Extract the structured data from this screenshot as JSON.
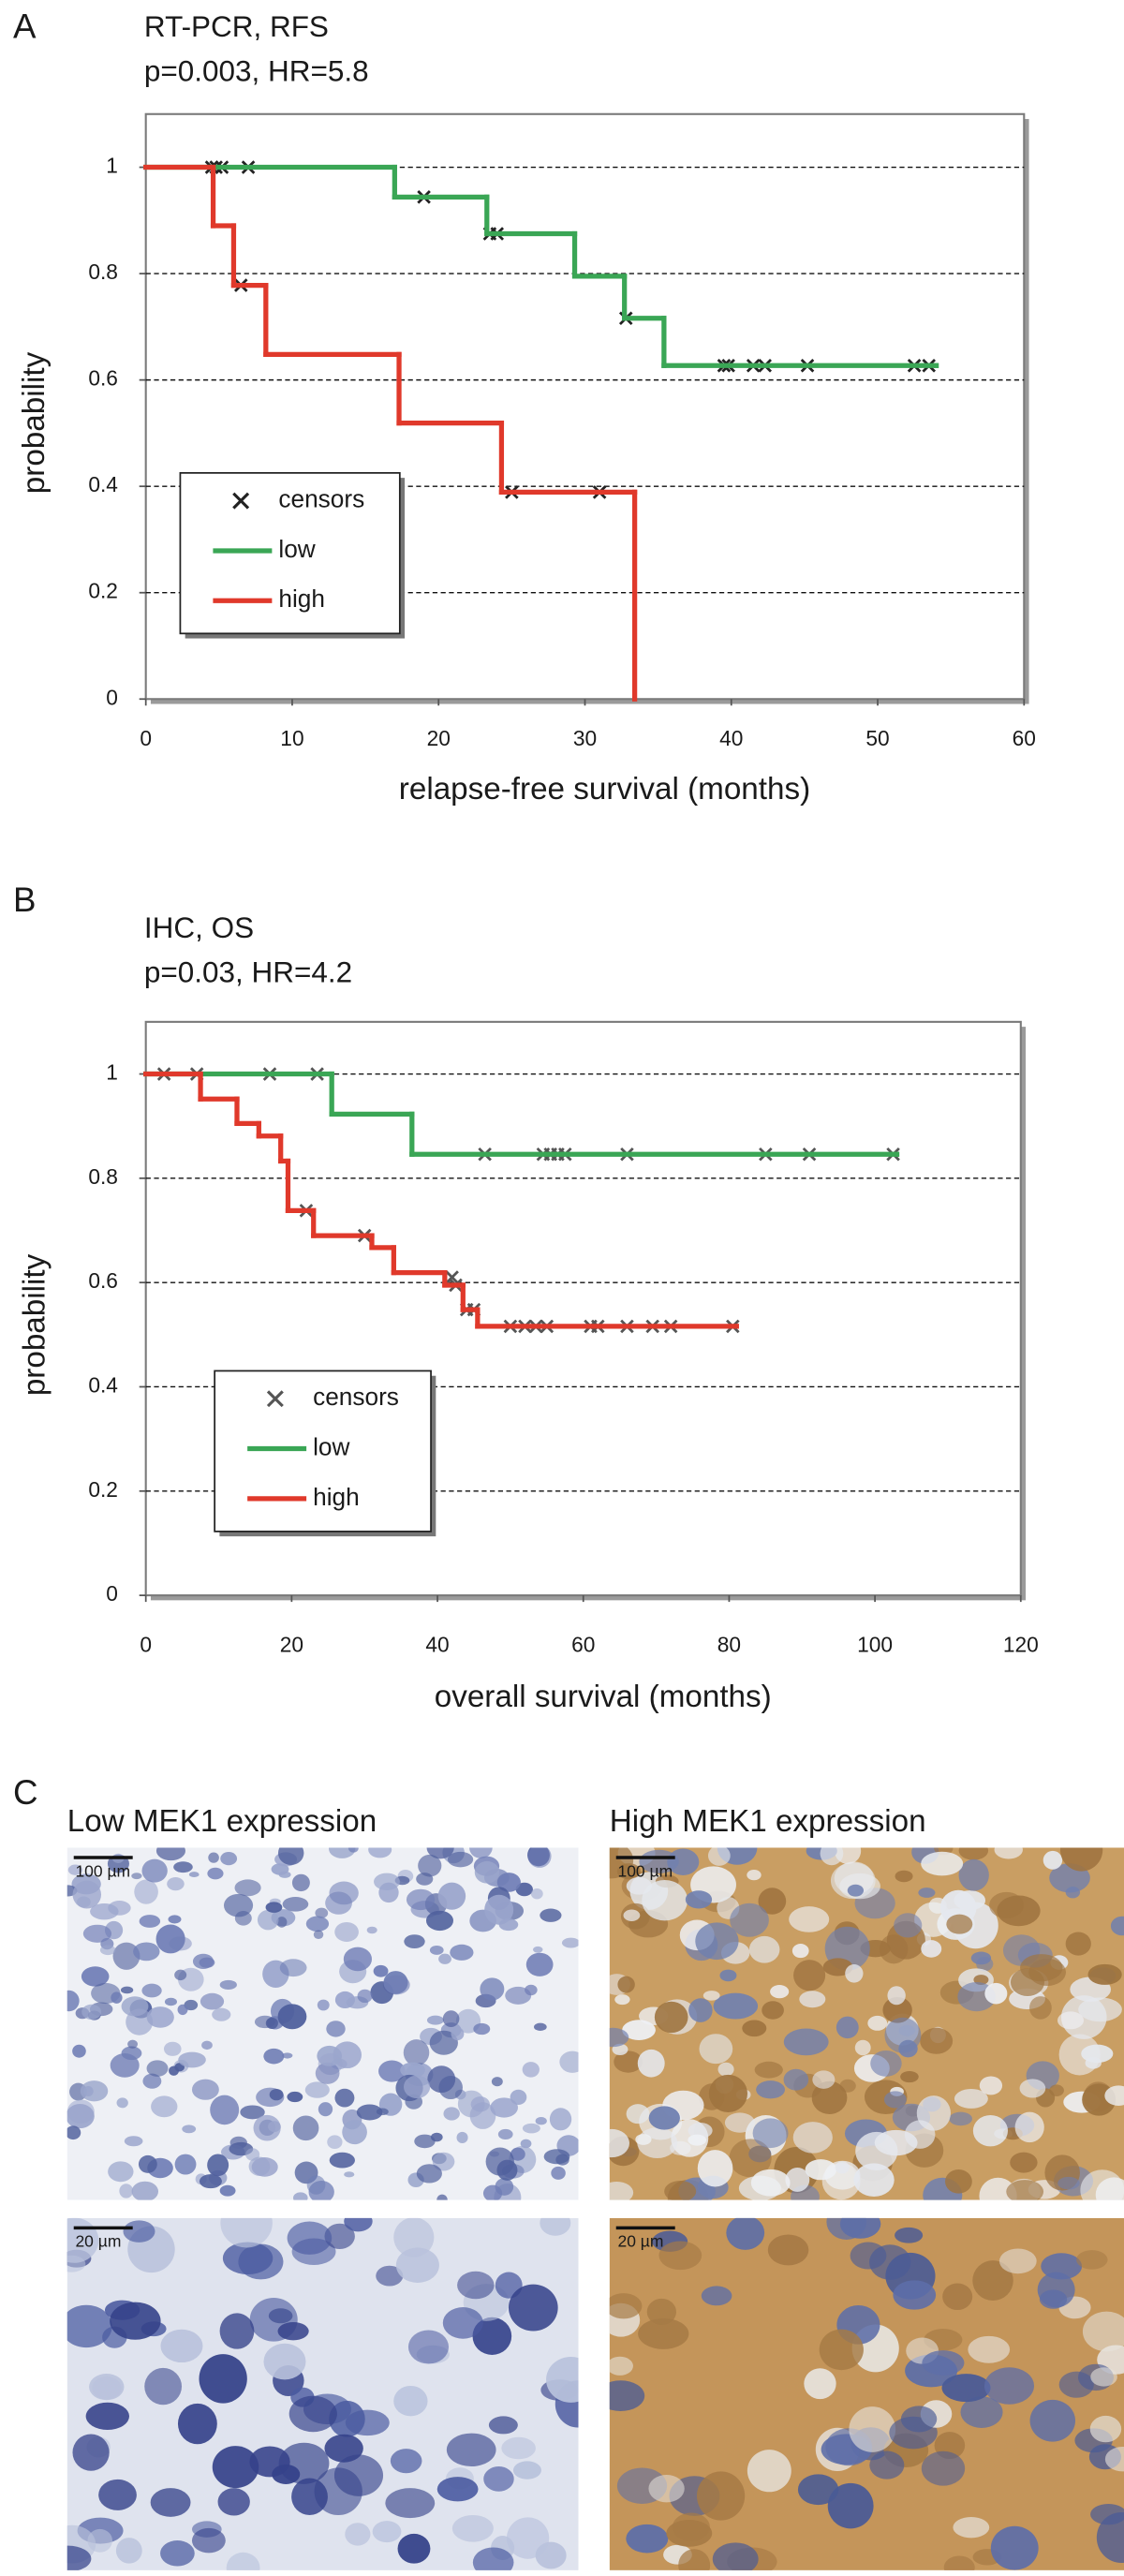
{
  "chart_data": [
    {
      "type": "line",
      "panel_label": "A",
      "title": "RT-PCR, RFS",
      "subtitle": "p=0.003, HR=5.8",
      "x_label": "relapse-free survival (months)",
      "y_label": "probability",
      "xlim": [
        0,
        60
      ],
      "xticks": [
        0,
        10,
        20,
        30,
        40,
        50,
        60
      ],
      "ylim": [
        0,
        1.1
      ],
      "yticks": [
        0,
        0.2,
        0.4,
        0.6,
        0.8,
        1
      ],
      "grid": true,
      "legend": "lower left",
      "series": [
        {
          "name": "censors",
          "color": "#222222",
          "marker": "x",
          "linestyle": "none",
          "x": [
            4.5,
            4.8,
            5.2,
            7,
            6.5,
            19,
            23.5,
            24,
            25,
            31,
            32.8,
            39.5,
            39.8,
            41.5,
            42.3,
            45.2,
            52.5,
            53.5
          ],
          "values": [
            1,
            1,
            1,
            1,
            0.778,
            0.944,
            0.875,
            0.875,
            0.389,
            0.389,
            0.716,
            0.627,
            0.627,
            0.627,
            0.627,
            0.627,
            0.627,
            0.627
          ]
        },
        {
          "name": "low",
          "color": "#3aa655",
          "drawstyle": "steps-post",
          "x": [
            0,
            17,
            23.3,
            29.3,
            32.7,
            35.4,
            54
          ],
          "values": [
            1,
            0.944,
            0.875,
            0.795,
            0.716,
            0.627,
            0.627
          ]
        },
        {
          "name": "high",
          "color": "#e0392b",
          "drawstyle": "steps-post",
          "x": [
            0,
            4.6,
            6,
            8.2,
            17.3,
            24.3,
            33.4
          ],
          "values": [
            1,
            0.89,
            0.778,
            0.648,
            0.519,
            0.389,
            0
          ]
        }
      ]
    },
    {
      "type": "line",
      "panel_label": "B",
      "title": "IHC, OS",
      "subtitle": "p=0.03, HR=4.2",
      "x_label": "overall survival (months)",
      "y_label": "probability",
      "xlim": [
        0,
        120
      ],
      "xticks": [
        0,
        20,
        40,
        60,
        80,
        100,
        120
      ],
      "ylim": [
        0,
        1.1
      ],
      "yticks": [
        0,
        0.2,
        0.4,
        0.6,
        0.8,
        1
      ],
      "grid": true,
      "legend": "lower left",
      "series": [
        {
          "name": "censors",
          "color": "#555555",
          "marker": "x",
          "linestyle": "none",
          "x": [
            17,
            23.5,
            46.5,
            54.5,
            55.5,
            56.5,
            57.5,
            66,
            85,
            91,
            102.5,
            2.5,
            7,
            22,
            30,
            42,
            42.5,
            44,
            45,
            50,
            52,
            53.5,
            55,
            61,
            62,
            66,
            69.5,
            72,
            80.5
          ],
          "values": [
            1,
            1,
            0.846,
            0.846,
            0.846,
            0.846,
            0.846,
            0.846,
            0.846,
            0.846,
            0.846,
            1,
            1,
            0.738,
            0.69,
            0.61,
            0.595,
            0.548,
            0.548,
            0.516,
            0.516,
            0.516,
            0.516,
            0.516,
            0.516,
            0.516,
            0.516,
            0.516,
            0.516
          ]
        },
        {
          "name": "low",
          "color": "#3aa655",
          "drawstyle": "steps-post",
          "x": [
            0,
            25.5,
            36.5,
            103
          ],
          "values": [
            1,
            0.923,
            0.846,
            0.846
          ]
        },
        {
          "name": "high",
          "color": "#e0392b",
          "drawstyle": "steps-post",
          "x": [
            0,
            7.5,
            12.5,
            15.5,
            18.5,
            19.5,
            23,
            31,
            34,
            41,
            43.5,
            45.5,
            81
          ],
          "values": [
            1,
            0.952,
            0.905,
            0.881,
            0.833,
            0.738,
            0.69,
            0.667,
            0.619,
            0.595,
            0.548,
            0.516,
            0.516
          ]
        }
      ]
    }
  ],
  "panel_c": {
    "label": "C",
    "left_title": "Low MEK1 expression",
    "right_title": "High MEK1 expression",
    "scale_bars": [
      "100 µm",
      "100 µm",
      "20 µm",
      "20 µm"
    ]
  }
}
